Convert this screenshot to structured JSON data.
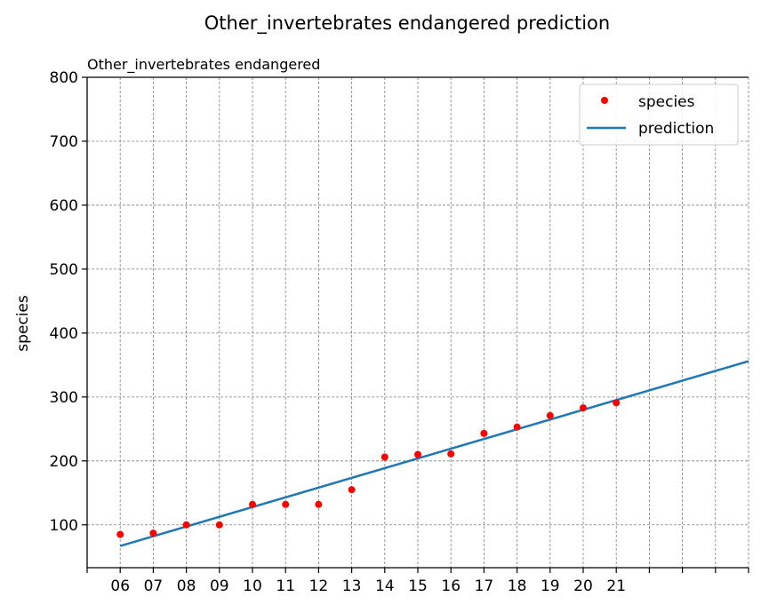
{
  "chart_data": {
    "type": "scatter",
    "title": "Other_invertebrates endangered prediction",
    "subtitle": "Other_invertebrates endangered",
    "xlabel": "",
    "ylabel": "species",
    "xlim": [
      5,
      25
    ],
    "ylim": [
      33,
      800
    ],
    "grid": true,
    "legend_position": "top-right",
    "x_ticks": [
      5,
      6,
      7,
      8,
      9,
      10,
      11,
      12,
      13,
      14,
      15,
      16,
      17,
      18,
      19,
      20,
      21,
      22,
      23,
      24,
      25
    ],
    "x_tick_labels": [
      "",
      "06",
      "07",
      "08",
      "09",
      "10",
      "11",
      "12",
      "13",
      "14",
      "15",
      "16",
      "17",
      "18",
      "19",
      "20",
      "21",
      "",
      "",
      "",
      ""
    ],
    "y_ticks": [
      100,
      200,
      300,
      400,
      500,
      600,
      700,
      800
    ],
    "y_tick_labels": [
      "100",
      "200",
      "300",
      "400",
      "500",
      "600",
      "700",
      "800"
    ],
    "series": [
      {
        "name": "species",
        "kind": "points",
        "color": "#ff0000",
        "x": [
          6,
          7,
          8,
          9,
          10,
          11,
          12,
          13,
          14,
          15,
          16,
          17,
          18,
          19,
          20,
          21
        ],
        "y": [
          85,
          87,
          100,
          100,
          132,
          132,
          132,
          155,
          206,
          210,
          211,
          243,
          253,
          271,
          283,
          291
        ]
      },
      {
        "name": "prediction",
        "kind": "line",
        "color": "#1f77b4",
        "x": [
          6,
          25
        ],
        "y": [
          67,
          356
        ]
      }
    ]
  }
}
